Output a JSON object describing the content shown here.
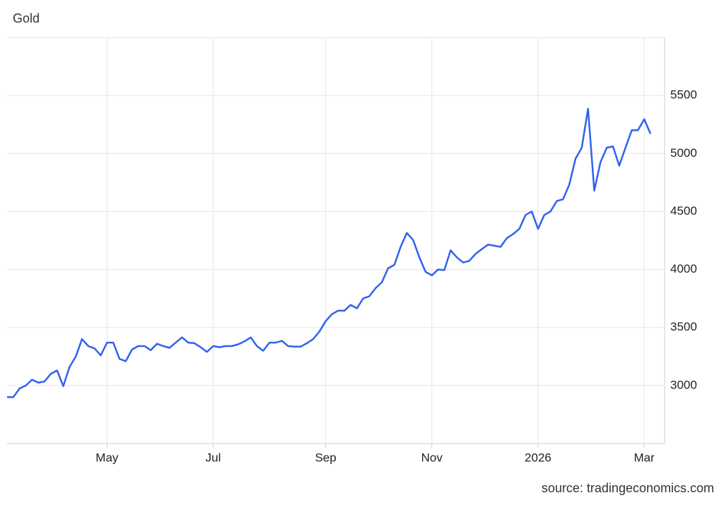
{
  "chart_data": {
    "type": "line",
    "title": "Gold",
    "source": "source: tradingeconomics.com",
    "categories": [
      null,
      null,
      null,
      null,
      null,
      null,
      null,
      null,
      null,
      null,
      null,
      null,
      null,
      null,
      null,
      null,
      "May",
      null,
      null,
      null,
      null,
      null,
      null,
      null,
      null,
      null,
      null,
      null,
      null,
      null,
      null,
      null,
      null,
      "Jul",
      null,
      null,
      null,
      null,
      null,
      null,
      null,
      null,
      null,
      null,
      null,
      null,
      null,
      null,
      null,
      null,
      null,
      "Sep",
      null,
      null,
      null,
      null,
      null,
      null,
      null,
      null,
      null,
      null,
      null,
      null,
      null,
      null,
      null,
      null,
      "Nov",
      null,
      null,
      null,
      null,
      null,
      null,
      null,
      null,
      null,
      null,
      null,
      null,
      null,
      null,
      null,
      null,
      "2026",
      null,
      null,
      null,
      null,
      null,
      null,
      null,
      null,
      null,
      null,
      null,
      null,
      null,
      null,
      null,
      null,
      "Mar",
      null
    ],
    "series": [
      {
        "name": "Gold",
        "color": "#2f62f0",
        "values": [
          2900,
          2900,
          2975,
          3000,
          3050,
          3025,
          3035,
          3100,
          3130,
          2995,
          3160,
          3250,
          3400,
          3340,
          3320,
          3260,
          3370,
          3370,
          3230,
          3210,
          3310,
          3340,
          3340,
          3305,
          3360,
          3340,
          3325,
          3370,
          3415,
          3370,
          3365,
          3330,
          3290,
          3340,
          3330,
          3340,
          3340,
          3355,
          3380,
          3415,
          3340,
          3300,
          3370,
          3370,
          3385,
          3340,
          3335,
          3335,
          3365,
          3400,
          3465,
          3555,
          3615,
          3645,
          3645,
          3695,
          3665,
          3750,
          3770,
          3840,
          3890,
          4010,
          4040,
          4195,
          4315,
          4255,
          4105,
          3980,
          3950,
          4000,
          3995,
          4165,
          4105,
          4060,
          4075,
          4135,
          4175,
          4215,
          4205,
          4195,
          4270,
          4305,
          4350,
          4470,
          4500,
          4350,
          4470,
          4500,
          4590,
          4605,
          4730,
          4955,
          5050,
          5385,
          4680,
          4925,
          5050,
          5060,
          4895,
          5050,
          5200,
          5200,
          5295,
          5170
        ]
      }
    ],
    "ylim": [
      2500,
      6000
    ],
    "yticks": [
      3000,
      3500,
      4000,
      4500,
      5000,
      5500
    ],
    "grid": true,
    "y_axis_side": "right"
  }
}
